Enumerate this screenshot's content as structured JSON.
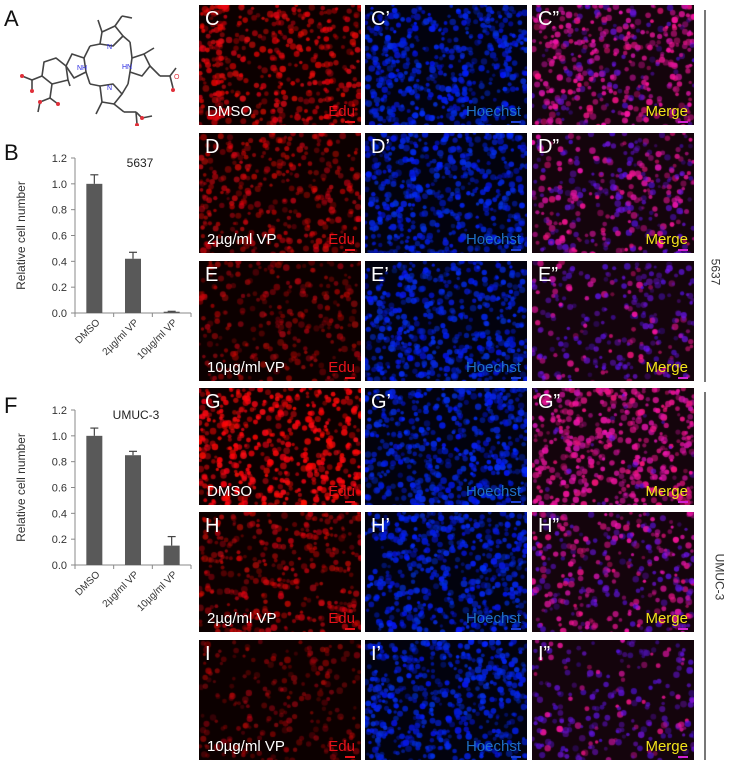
{
  "figure": {
    "panels": {
      "A": "A",
      "B": "B",
      "F": "F"
    },
    "structure": {
      "atoms": {
        "nh1": "NH",
        "nh2": "HN",
        "n1": "N",
        "n2": "N",
        "oh": "OH",
        "o": "O"
      }
    },
    "side_labels": {
      "top_group": "5637",
      "bottom_group": "UMUC-3"
    },
    "micrographs": {
      "rows": [
        {
          "condition": "DMSO",
          "labels": [
            "C",
            "C’",
            "C”"
          ],
          "group": "5637",
          "intensity": 0.75
        },
        {
          "condition": "2µg/ml VP",
          "labels": [
            "D",
            "D’",
            "D”"
          ],
          "group": "5637",
          "intensity": 0.55
        },
        {
          "condition": "10µg/ml VP",
          "labels": [
            "E",
            "E’",
            "E”"
          ],
          "group": "5637",
          "intensity": 0.35
        },
        {
          "condition": "DMSO",
          "labels": [
            "G",
            "G’",
            "G”"
          ],
          "group": "UMUC-3",
          "intensity": 0.95
        },
        {
          "condition": "2µg/ml VP",
          "labels": [
            "H",
            "H’",
            "H”"
          ],
          "group": "UMUC-3",
          "intensity": 0.55
        },
        {
          "condition": "10µg/ml VP",
          "labels": [
            "I",
            "I’",
            "I”"
          ],
          "group": "UMUC-3",
          "intensity": 0.25
        }
      ],
      "channels": [
        {
          "name": "Edu",
          "color": "#e8121a"
        },
        {
          "name": "Hoechst",
          "color": "#1f6fc4"
        },
        {
          "name": "Merge",
          "color": "#f2e21a"
        }
      ],
      "scale_bar_colors": [
        "#e8121a",
        "#1f3fd0",
        "#d020d0"
      ]
    }
  },
  "chart_data": [
    {
      "type": "bar",
      "title": "5637",
      "panel": "B",
      "categories": [
        "DMSO",
        "2µg/ml VP",
        "10µg/ml VP"
      ],
      "values": [
        1.0,
        0.42,
        0.01
      ],
      "errors": [
        0.07,
        0.05,
        0.003
      ],
      "xlabel": "",
      "ylabel": "Relative  cell number",
      "ylim": [
        0,
        1.2
      ],
      "yticks": [
        "0.0",
        "0.2",
        "0.4",
        "0.6",
        "0.8",
        "1.0",
        "1.2"
      ],
      "grid": false,
      "bar_color": "#595959"
    },
    {
      "type": "bar",
      "title": "UMUC-3",
      "panel": "F",
      "categories": [
        "DMSO",
        "2µg/ml VP",
        "10µg/ml VP"
      ],
      "values": [
        1.0,
        0.85,
        0.15
      ],
      "errors": [
        0.06,
        0.03,
        0.07
      ],
      "xlabel": "",
      "ylabel": "Relative  cell number",
      "ylim": [
        0,
        1.2
      ],
      "yticks": [
        "0.0",
        "0.2",
        "0.4",
        "0.6",
        "0.8",
        "1.0",
        "1.2"
      ],
      "grid": false,
      "bar_color": "#595959"
    }
  ]
}
